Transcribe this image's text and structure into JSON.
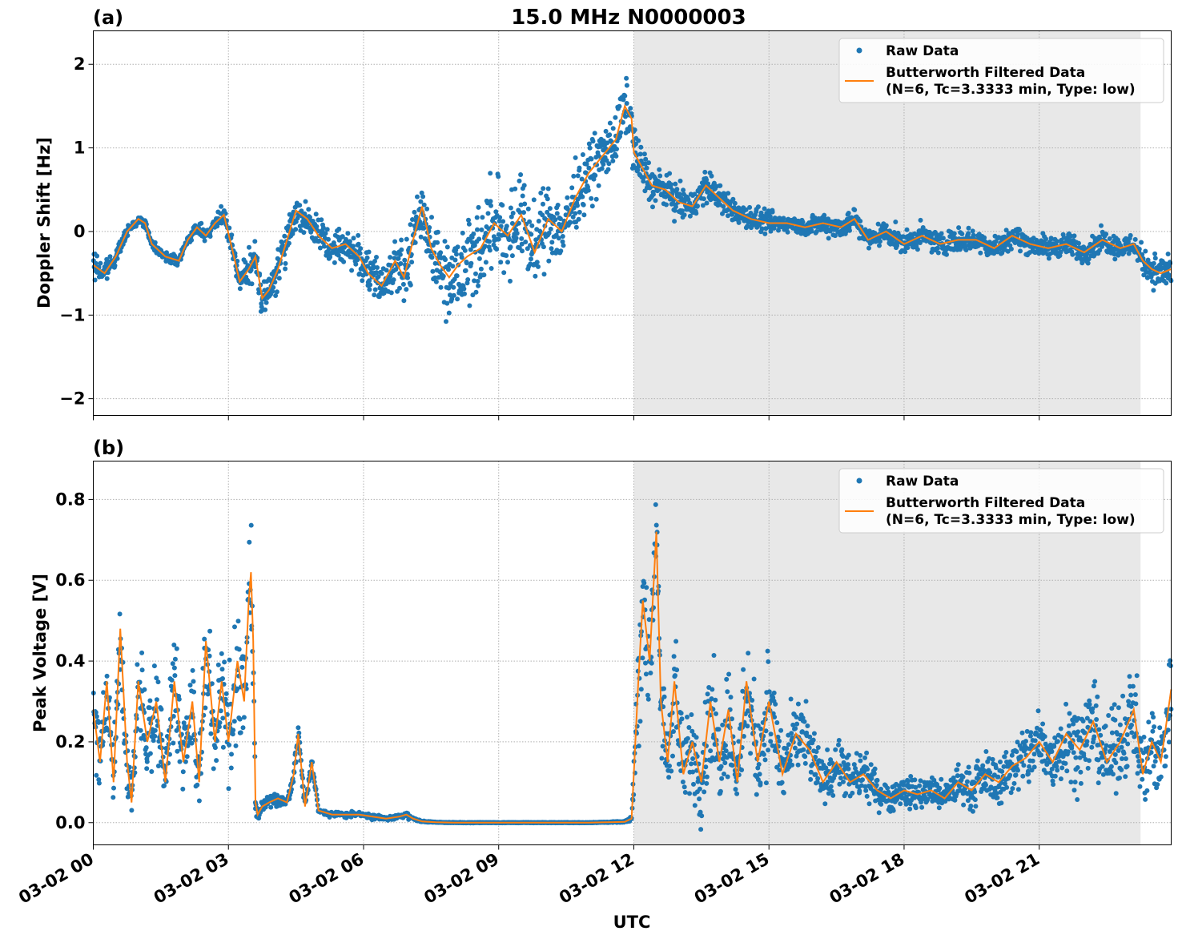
{
  "figure": {
    "title": "15.0 MHz N0000003",
    "xlabel": "UTC",
    "x_ticks": [
      "03-02 00",
      "03-02 03",
      "03-02 06",
      "03-02 09",
      "03-02 12",
      "03-02 15",
      "03-02 18",
      "03-02 21"
    ]
  },
  "colors": {
    "raw": "#1f77b4",
    "filtered": "#ff7f0e",
    "shade": "#e8e8e8",
    "grid": "#b0b0b0"
  },
  "chart_data": [
    {
      "type": "scatter",
      "panel_label": "(a)",
      "title": "15.0 MHz N0000003",
      "xlabel": "UTC",
      "ylabel": "Doppler Shift [Hz]",
      "x_unit": "hours since 03-02 00 UTC",
      "xlim": [
        0,
        23.93
      ],
      "ylim": [
        -2.2,
        2.4
      ],
      "y_ticks": [
        -2,
        -1,
        0,
        1,
        2
      ],
      "y_tick_labels": [
        "−2",
        "−1",
        "0",
        "1",
        "2"
      ],
      "shaded_span": [
        12.0,
        23.25
      ],
      "legend": {
        "placement": "top-right",
        "entries": [
          {
            "label": "Raw Data",
            "kind": "dot"
          },
          {
            "label": "Butterworth Filtered Data",
            "label2": "(N=6, Tc=3.3333 min, Type: low)",
            "kind": "line"
          }
        ]
      },
      "series": [
        {
          "name": "Butterworth Filtered Data",
          "x": [
            0,
            0.25,
            0.5,
            0.75,
            1.0,
            1.15,
            1.3,
            1.6,
            1.9,
            2.1,
            2.3,
            2.5,
            2.7,
            2.9,
            3.1,
            3.25,
            3.45,
            3.6,
            3.75,
            3.9,
            4.1,
            4.3,
            4.5,
            4.75,
            5.0,
            5.3,
            5.6,
            5.9,
            6.1,
            6.4,
            6.7,
            6.9,
            7.1,
            7.3,
            7.5,
            7.7,
            7.9,
            8.1,
            8.3,
            8.6,
            8.9,
            9.2,
            9.5,
            9.8,
            10.1,
            10.4,
            10.7,
            11.0,
            11.3,
            11.6,
            11.8,
            11.95,
            12.0,
            12.2,
            12.4,
            12.7,
            13.0,
            13.3,
            13.6,
            13.9,
            14.2,
            14.6,
            15.0,
            15.4,
            15.8,
            16.2,
            16.6,
            16.9,
            17.2,
            17.6,
            18.0,
            18.4,
            18.8,
            19.2,
            19.6,
            20.0,
            20.4,
            20.8,
            21.2,
            21.6,
            22.0,
            22.4,
            22.8,
            23.1,
            23.3,
            23.5,
            23.7,
            23.93
          ],
          "y": [
            -0.4,
            -0.5,
            -0.3,
            0.0,
            0.15,
            0.1,
            -0.15,
            -0.3,
            -0.35,
            -0.1,
            0.05,
            -0.05,
            0.1,
            0.2,
            -0.25,
            -0.6,
            -0.45,
            -0.3,
            -0.8,
            -0.7,
            -0.45,
            -0.1,
            0.25,
            0.15,
            -0.05,
            -0.2,
            -0.15,
            -0.3,
            -0.5,
            -0.65,
            -0.35,
            -0.55,
            -0.1,
            0.3,
            -0.2,
            -0.4,
            -0.55,
            -0.4,
            -0.3,
            -0.2,
            0.1,
            -0.05,
            0.2,
            -0.25,
            0.15,
            0.0,
            0.4,
            0.7,
            0.9,
            1.1,
            1.5,
            1.35,
            0.95,
            0.75,
            0.55,
            0.5,
            0.35,
            0.3,
            0.55,
            0.4,
            0.25,
            0.15,
            0.1,
            0.1,
            0.05,
            0.1,
            0.05,
            0.15,
            -0.1,
            0.0,
            -0.15,
            -0.05,
            -0.15,
            -0.1,
            -0.1,
            -0.2,
            -0.05,
            -0.15,
            -0.2,
            -0.15,
            -0.25,
            -0.1,
            -0.2,
            -0.15,
            -0.35,
            -0.45,
            -0.5,
            -0.45
          ]
        },
        {
          "name": "Raw Data",
          "x": [
            0,
            0.25,
            0.5,
            0.75,
            1.0,
            1.15,
            1.3,
            1.6,
            1.9,
            2.1,
            2.3,
            2.5,
            2.7,
            2.9,
            3.1,
            3.25,
            3.45,
            3.6,
            3.75,
            3.9,
            4.1,
            4.3,
            4.5,
            4.75,
            5.0,
            5.3,
            5.6,
            5.9,
            6.1,
            6.4,
            6.7,
            6.9,
            7.1,
            7.3,
            7.5,
            7.7,
            7.9,
            8.1,
            8.3,
            8.6,
            8.9,
            9.2,
            9.5,
            9.8,
            10.1,
            10.4,
            10.7,
            11.0,
            11.3,
            11.6,
            11.8,
            11.95,
            12.0,
            12.2,
            12.4,
            12.7,
            13.0,
            13.3,
            13.6,
            13.9,
            14.2,
            14.6,
            15.0,
            15.4,
            15.8,
            16.2,
            16.6,
            16.9,
            17.2,
            17.6,
            18.0,
            18.4,
            18.8,
            19.2,
            19.6,
            20.0,
            20.4,
            20.8,
            21.2,
            21.6,
            22.0,
            22.4,
            22.8,
            23.1,
            23.3,
            23.5,
            23.7,
            23.93
          ],
          "spread": [
            0.25,
            0.2,
            0.15,
            0.08,
            0.06,
            0.08,
            0.08,
            0.08,
            0.08,
            0.08,
            0.1,
            0.12,
            0.12,
            0.15,
            0.2,
            0.25,
            0.3,
            0.3,
            0.3,
            0.35,
            0.35,
            0.35,
            0.3,
            0.3,
            0.3,
            0.3,
            0.3,
            0.35,
            0.4,
            0.4,
            0.45,
            0.5,
            0.55,
            0.6,
            0.6,
            0.65,
            0.75,
            0.8,
            0.8,
            0.8,
            0.8,
            0.8,
            0.75,
            0.7,
            0.65,
            0.6,
            0.55,
            0.55,
            0.5,
            0.5,
            0.5,
            0.45,
            0.45,
            0.4,
            0.35,
            0.3,
            0.3,
            0.25,
            0.3,
            0.25,
            0.2,
            0.2,
            0.2,
            0.15,
            0.15,
            0.2,
            0.2,
            0.2,
            0.2,
            0.2,
            0.2,
            0.2,
            0.2,
            0.2,
            0.2,
            0.2,
            0.2,
            0.2,
            0.2,
            0.2,
            0.2,
            0.2,
            0.2,
            0.2,
            0.25,
            0.3,
            0.3,
            0.3
          ]
        }
      ]
    },
    {
      "type": "scatter",
      "panel_label": "(b)",
      "xlabel": "UTC",
      "ylabel": "Peak Voltage [V]",
      "x_unit": "hours since 03-02 00 UTC",
      "xlim": [
        0,
        23.93
      ],
      "ylim": [
        -0.055,
        0.895
      ],
      "y_ticks": [
        0.0,
        0.2,
        0.4,
        0.6,
        0.8
      ],
      "y_tick_labels": [
        "0.0",
        "0.2",
        "0.4",
        "0.6",
        "0.8"
      ],
      "shaded_span": [
        12.0,
        23.25
      ],
      "legend": {
        "placement": "top-right",
        "entries": [
          {
            "label": "Raw Data",
            "kind": "dot"
          },
          {
            "label": "Butterworth Filtered Data",
            "label2": "(N=6, Tc=3.3333 min, Type: low)",
            "kind": "line"
          }
        ]
      },
      "series": [
        {
          "name": "Butterworth Filtered Data",
          "x": [
            0,
            0.15,
            0.3,
            0.45,
            0.6,
            0.75,
            0.85,
            1.0,
            1.2,
            1.4,
            1.6,
            1.8,
            2.0,
            2.2,
            2.35,
            2.5,
            2.7,
            2.85,
            3.0,
            3.2,
            3.35,
            3.45,
            3.5,
            3.55,
            3.6,
            3.65,
            3.75,
            3.9,
            4.1,
            4.3,
            4.45,
            4.55,
            4.7,
            4.85,
            5.0,
            5.3,
            5.6,
            5.9,
            6.2,
            6.5,
            6.8,
            6.95,
            7.1,
            7.3,
            7.6,
            8.0,
            9.0,
            10.0,
            11.0,
            11.8,
            11.95,
            12.1,
            12.2,
            12.35,
            12.5,
            12.6,
            12.75,
            12.9,
            13.1,
            13.3,
            13.5,
            13.7,
            13.9,
            14.1,
            14.3,
            14.5,
            14.75,
            15.0,
            15.3,
            15.6,
            15.9,
            16.2,
            16.5,
            16.8,
            17.1,
            17.4,
            17.7,
            18.0,
            18.3,
            18.6,
            18.9,
            19.2,
            19.5,
            19.8,
            20.1,
            20.4,
            20.7,
            21.0,
            21.3,
            21.6,
            21.9,
            22.2,
            22.5,
            22.8,
            23.1,
            23.3,
            23.5,
            23.7,
            23.93
          ],
          "y": [
            0.28,
            0.15,
            0.35,
            0.1,
            0.48,
            0.15,
            0.05,
            0.35,
            0.2,
            0.3,
            0.1,
            0.35,
            0.15,
            0.3,
            0.1,
            0.45,
            0.2,
            0.35,
            0.2,
            0.4,
            0.3,
            0.55,
            0.62,
            0.45,
            0.05,
            0.02,
            0.04,
            0.05,
            0.06,
            0.05,
            0.12,
            0.22,
            0.04,
            0.15,
            0.03,
            0.02,
            0.02,
            0.02,
            0.015,
            0.01,
            0.015,
            0.02,
            0.01,
            0.003,
            0.001,
            0.0,
            0.0,
            0.0,
            0.0,
            0.002,
            0.01,
            0.35,
            0.55,
            0.4,
            0.72,
            0.3,
            0.15,
            0.35,
            0.12,
            0.2,
            0.1,
            0.3,
            0.15,
            0.28,
            0.1,
            0.35,
            0.15,
            0.3,
            0.12,
            0.22,
            0.18,
            0.1,
            0.15,
            0.1,
            0.12,
            0.08,
            0.06,
            0.08,
            0.07,
            0.08,
            0.06,
            0.1,
            0.08,
            0.12,
            0.1,
            0.14,
            0.16,
            0.2,
            0.15,
            0.22,
            0.18,
            0.25,
            0.15,
            0.2,
            0.28,
            0.12,
            0.2,
            0.15,
            0.33
          ]
        },
        {
          "name": "Raw Data",
          "x": [
            0,
            0.15,
            0.3,
            0.45,
            0.6,
            0.75,
            0.85,
            1.0,
            1.2,
            1.4,
            1.6,
            1.8,
            2.0,
            2.2,
            2.35,
            2.5,
            2.7,
            2.85,
            3.0,
            3.2,
            3.35,
            3.45,
            3.5,
            3.55,
            3.6,
            3.65,
            3.75,
            3.9,
            4.1,
            4.3,
            4.45,
            4.55,
            4.7,
            4.85,
            5.0,
            5.3,
            5.6,
            5.9,
            6.2,
            6.5,
            6.8,
            6.95,
            7.1,
            7.3,
            7.6,
            8.0,
            9.0,
            10.0,
            11.0,
            11.8,
            11.95,
            12.1,
            12.2,
            12.35,
            12.5,
            12.6,
            12.75,
            12.9,
            13.1,
            13.3,
            13.5,
            13.7,
            13.9,
            14.1,
            14.3,
            14.5,
            14.75,
            15.0,
            15.3,
            15.6,
            15.9,
            16.2,
            16.5,
            16.8,
            17.1,
            17.4,
            17.7,
            18.0,
            18.3,
            18.6,
            18.9,
            19.2,
            19.5,
            19.8,
            20.1,
            20.4,
            20.7,
            21.0,
            21.3,
            21.6,
            21.9,
            22.2,
            22.5,
            22.8,
            23.1,
            23.3,
            23.5,
            23.7,
            23.93
          ],
          "spread": [
            0.18,
            0.15,
            0.2,
            0.12,
            0.18,
            0.15,
            0.05,
            0.2,
            0.15,
            0.2,
            0.12,
            0.2,
            0.15,
            0.2,
            0.12,
            0.18,
            0.15,
            0.2,
            0.2,
            0.25,
            0.25,
            0.2,
            0.2,
            0.2,
            0.03,
            0.02,
            0.02,
            0.02,
            0.03,
            0.02,
            0.03,
            0.04,
            0.02,
            0.03,
            0.01,
            0.01,
            0.01,
            0.01,
            0.01,
            0.005,
            0.01,
            0.015,
            0.005,
            0.002,
            0.001,
            0.001,
            0.001,
            0.001,
            0.001,
            0.002,
            0.01,
            0.25,
            0.25,
            0.3,
            0.1,
            0.2,
            0.15,
            0.25,
            0.12,
            0.2,
            0.15,
            0.22,
            0.15,
            0.2,
            0.12,
            0.25,
            0.15,
            0.22,
            0.12,
            0.15,
            0.12,
            0.08,
            0.1,
            0.08,
            0.08,
            0.06,
            0.05,
            0.06,
            0.05,
            0.06,
            0.05,
            0.07,
            0.07,
            0.08,
            0.08,
            0.1,
            0.12,
            0.12,
            0.12,
            0.14,
            0.14,
            0.15,
            0.14,
            0.15,
            0.18,
            0.12,
            0.15,
            0.15,
            0.2
          ]
        }
      ]
    }
  ]
}
